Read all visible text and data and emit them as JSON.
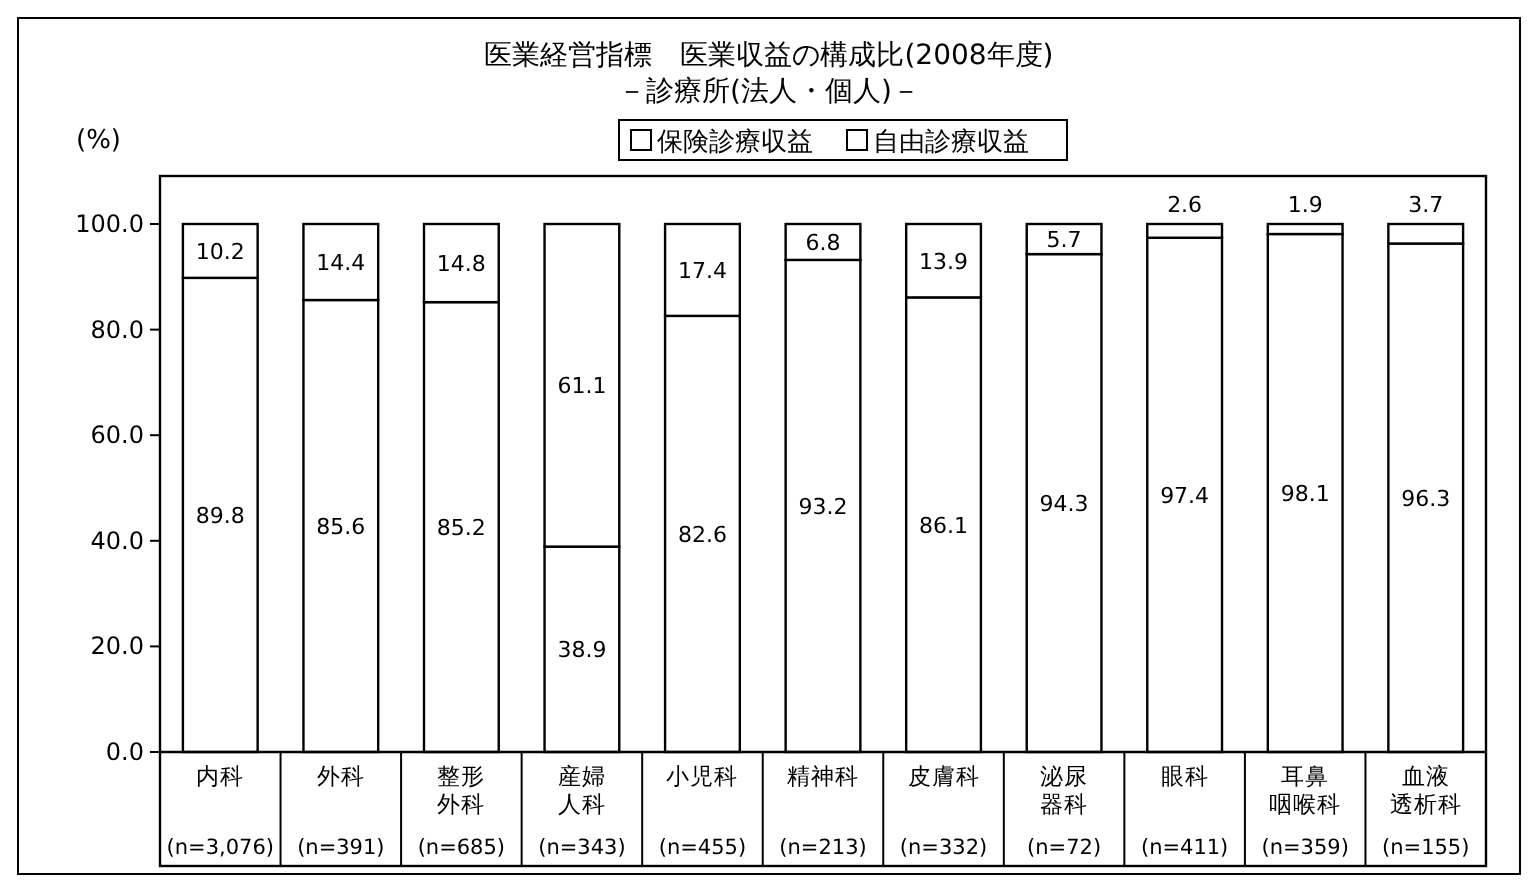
{
  "chart_data": {
    "type": "bar",
    "title": "医業経営指標　医業収益の構成比(2008年度)",
    "subtitle": "－診療所(法人・個人)－",
    "ylabel": "(%)",
    "categories": [
      "内科\n(n=3,076)",
      "外科\n(n=391)",
      "整形外科\n(n=685)",
      "産婦人科\n(n=343)",
      "小児科\n(n=455)",
      "精神科\n(n=213)",
      "皮膚科\n(n=332)",
      "泌尿器科\n(n=72)",
      "眼科\n(n=411)",
      "耳鼻咽喉科\n(n=359)",
      "血液透析科\n(n=155)"
    ],
    "series": [
      {
        "name": "保険診療収益",
        "color": "#ffffff",
        "values": [
          89.8,
          85.6,
          85.2,
          38.9,
          82.6,
          93.2,
          86.1,
          94.3,
          97.4,
          98.1,
          96.3
        ]
      },
      {
        "name": "自由診療収益",
        "color": "#ffffff",
        "values": [
          10.2,
          14.4,
          14.8,
          61.1,
          17.4,
          6.8,
          13.9,
          5.7,
          2.6,
          1.9,
          3.7
        ]
      }
    ],
    "stacked": true,
    "data_labels": true,
    "legend": "top",
    "grid": false,
    "ylim": [
      0,
      100
    ],
    "yticks": [
      {
        "value": 0,
        "label": "0.0"
      },
      {
        "value": 20,
        "label": "20.0"
      },
      {
        "value": 40,
        "label": "40.0"
      },
      {
        "value": 60,
        "label": "60.0"
      },
      {
        "value": 80,
        "label": "80.0"
      },
      {
        "value": 100,
        "label": "100.0"
      }
    ]
  }
}
